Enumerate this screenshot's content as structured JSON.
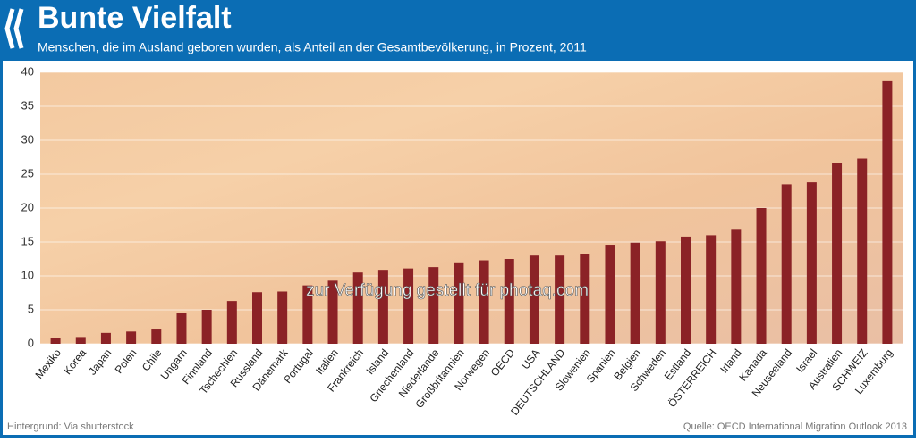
{
  "chart_data": {
    "type": "bar",
    "title": "Bunte Vielfalt",
    "subtitle": "Menschen, die im Ausland geboren wurden, als Anteil an der Gesamtbevölkerung, in Prozent, 2011",
    "categories": [
      "Mexiko",
      "Korea",
      "Japan",
      "Polen",
      "Chile",
      "Ungarn",
      "Finnland",
      "Tschechien",
      "Russland",
      "Dänemark",
      "Portugal",
      "Italien",
      "Frankreich",
      "Island",
      "Griechenland",
      "Niederlande",
      "Großbritannien",
      "Norwegen",
      "OECD",
      "USA",
      "DEUTSCHLAND",
      "Slowenien",
      "Spanien",
      "Belgien",
      "Schweden",
      "Estland",
      "ÖSTERREICH",
      "Irland",
      "Kanada",
      "Neuseeland",
      "Israel",
      "Australien",
      "SCHWEIZ",
      "Luxemburg"
    ],
    "values": [
      0.8,
      1.0,
      1.6,
      1.8,
      2.1,
      4.6,
      5.0,
      6.3,
      7.6,
      7.7,
      8.6,
      9.3,
      10.5,
      10.9,
      11.1,
      11.3,
      12.0,
      12.3,
      12.5,
      13.0,
      13.0,
      13.2,
      14.6,
      14.9,
      15.1,
      15.8,
      16.0,
      16.8,
      20.0,
      23.5,
      23.8,
      26.6,
      27.3,
      38.7
    ],
    "color": "#8b2226",
    "ylim": [
      0,
      40
    ],
    "yticks": [
      0,
      5,
      10,
      15,
      20,
      25,
      30,
      35,
      40
    ],
    "grid": true,
    "watermark": "zur Verfügung gestellt für photaq.com",
    "footer_left": "Hintergrund: Via shutterstock",
    "footer_right": "Quelle: OECD  International Migration Outlook 2013"
  }
}
